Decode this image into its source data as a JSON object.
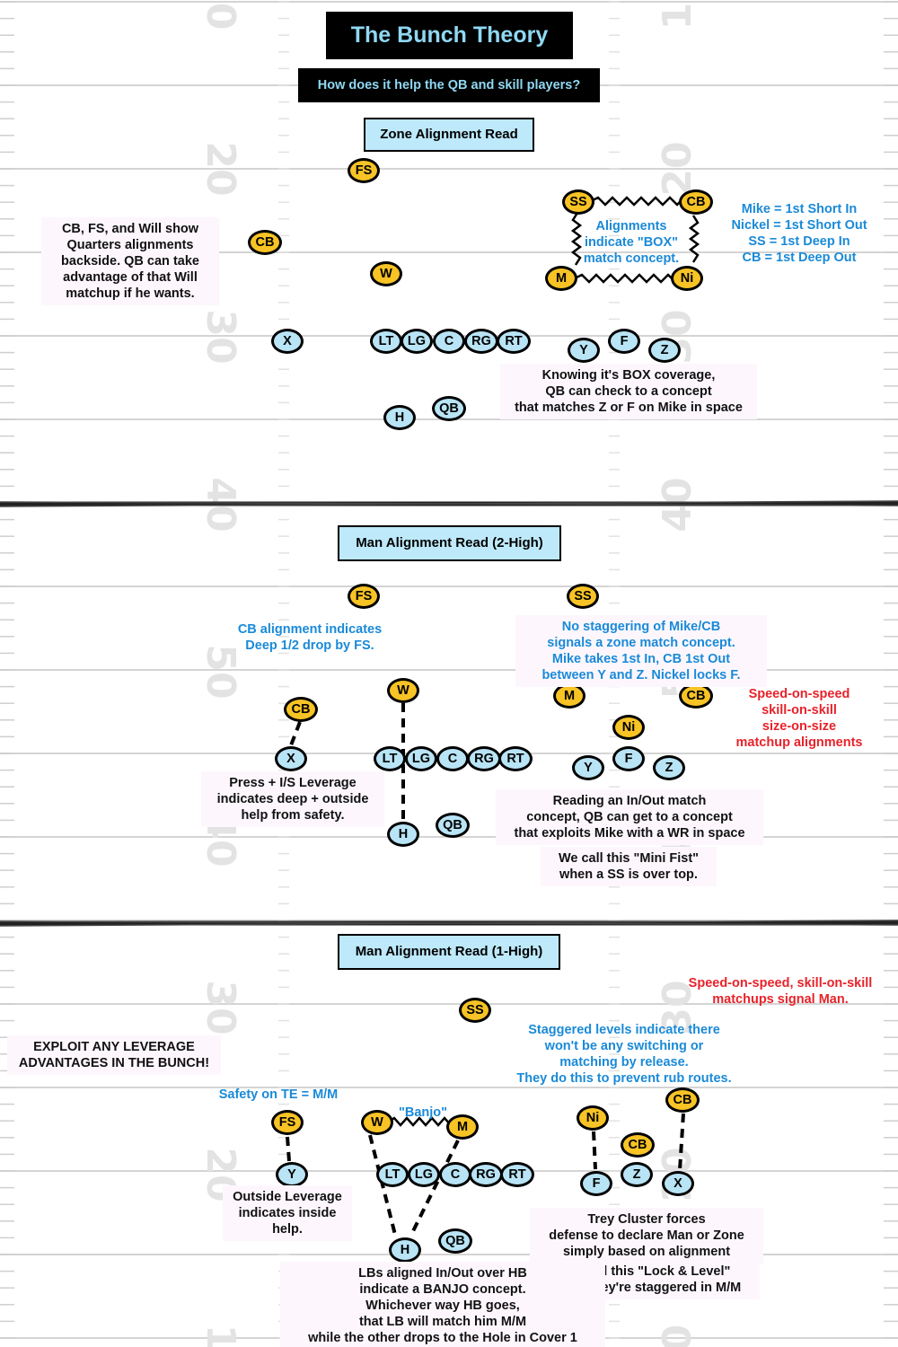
{
  "header": {
    "title": "The Bunch Theory",
    "subtitle": "How does it help the QB and skill players?"
  },
  "sections": {
    "zone": {
      "label": "Zone Alignment Read"
    },
    "man2": {
      "label": "Man Alignment Read (2-High)"
    },
    "man1": {
      "label": "Man Alignment Read (1-High)"
    }
  },
  "field": {
    "yard_numbers": [
      "0",
      "1",
      "20",
      "20",
      "30",
      "30",
      "40",
      "40",
      "50",
      "50",
      "40",
      "40",
      "30",
      "30",
      "20",
      "20",
      "1",
      "0"
    ]
  },
  "players": {
    "zone": {
      "fs": "FS",
      "cb_left": "CB",
      "w": "W",
      "ss": "SS",
      "cb_right": "CB",
      "m": "M",
      "ni": "Ni",
      "x": "X",
      "lt": "LT",
      "lg": "LG",
      "c": "C",
      "rg": "RG",
      "rt": "RT",
      "y": "Y",
      "f": "F",
      "z": "Z",
      "h": "H",
      "qb": "QB"
    },
    "man2": {
      "fs": "FS",
      "ss": "SS",
      "w": "W",
      "cb_left": "CB",
      "m": "M",
      "cb_right": "CB",
      "ni": "Ni",
      "x": "X",
      "lt": "LT",
      "lg": "LG",
      "c": "C",
      "rg": "RG",
      "rt": "RT",
      "y": "Y",
      "f": "F",
      "z": "Z",
      "h": "H",
      "qb": "QB"
    },
    "man1": {
      "ss": "SS",
      "fs": "FS",
      "w": "W",
      "m": "M",
      "ni": "Ni",
      "cb_mid": "CB",
      "cb_right": "CB",
      "y": "Y",
      "lt": "LT",
      "lg": "LG",
      "c": "C",
      "rg": "RG",
      "rt": "RT",
      "f": "F",
      "z": "Z",
      "x": "X",
      "h": "H",
      "qb": "QB"
    }
  },
  "notes": {
    "zone": {
      "quarters": [
        "CB, FS, and Will show",
        "Quarters alignments",
        "backside. QB can take",
        "advantage of that Will",
        "matchup if he wants."
      ],
      "box": [
        "Alignments",
        "indicate \"BOX\"",
        "match concept."
      ],
      "rules": [
        "Mike = 1st Short In",
        "Nickel = 1st Short Out",
        "SS = 1st Deep In",
        "CB = 1st Deep Out"
      ],
      "knowing": [
        "Knowing it's BOX coverage,",
        "QB can check to a concept",
        "that matches Z or F on Mike in space"
      ]
    },
    "man2": {
      "cb_align": [
        "CB alignment indicates",
        "Deep 1/2 drop by FS."
      ],
      "stagger": [
        "No staggering of Mike/CB",
        "signals a zone match concept.",
        "Mike takes 1st In, CB 1st Out",
        "between Y and Z. Nickel locks F."
      ],
      "speed": [
        "Speed-on-speed",
        "skill-on-skill",
        "size-on-size",
        "matchup alignments"
      ],
      "press": [
        "Press + I/S Leverage",
        "indicates deep + outside",
        "help from safety."
      ],
      "reading": [
        "Reading an In/Out match",
        "concept, QB can get to a concept",
        "that exploits Mike with a WR in space"
      ],
      "mini_fist": [
        "We call this \"Mini Fist\"",
        "when a SS is over top."
      ]
    },
    "man1": {
      "speed": [
        "Speed-on-speed, skill-on-skill",
        "matchups signal Man."
      ],
      "exploit": [
        "EXPLOIT ANY LEVERAGE",
        "ADVANTAGES IN THE BUNCH!"
      ],
      "staggered": [
        "Staggered levels indicate there",
        "won't be any switching or",
        "matching by release.",
        "They do this to prevent rub routes."
      ],
      "safety_te": [
        "Safety on TE = M/M"
      ],
      "banjo_label": [
        "\"Banjo\""
      ],
      "outside": [
        "Outside Leverage",
        "indicates inside",
        "help."
      ],
      "trey": [
        "Trey Cluster forces",
        "defense to declare Man or Zone",
        "simply based on alignment"
      ],
      "lock_level": [
        "We call this \"Lock & Level\"",
        "when they're staggered in M/M"
      ],
      "lbs": [
        "LBs aligned In/Out over HB",
        "indicate a BANJO concept.",
        "Whichever way HB goes,",
        "that LB will match him M/M",
        "while the other drops to the Hole in Cover 1"
      ]
    }
  },
  "colors": {
    "defense": "#f7c325",
    "offense": "#b8e4f5",
    "note_blue": "#1a8ad8",
    "note_red": "#e8222a",
    "title_text": "#8fd8f2"
  }
}
